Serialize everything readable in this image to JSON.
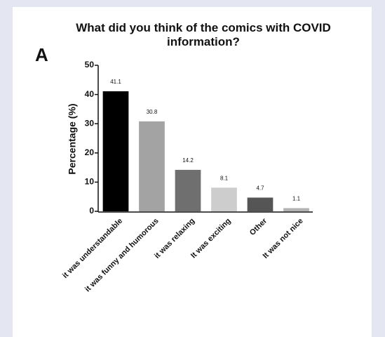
{
  "chart_data": {
    "type": "bar",
    "panel_label": "A",
    "title": "What did you think of the comics with COVID information?",
    "y_label": "Percentage (%)",
    "categories": [
      "it was understandable",
      "it was funny and humorous",
      "it was relaxing",
      "It was exciting",
      "Other",
      "It was not nice"
    ],
    "values": [
      41.1,
      30.8,
      14.2,
      8.1,
      4.7,
      1.1
    ],
    "colors": [
      "#000000",
      "#a3a3a3",
      "#6f6f6f",
      "#cdcdcd",
      "#555555",
      "#b3b3b3"
    ],
    "ylim": [
      0,
      50
    ],
    "yticks": [
      0,
      10,
      20,
      30,
      40,
      50
    ],
    "grid": false
  }
}
